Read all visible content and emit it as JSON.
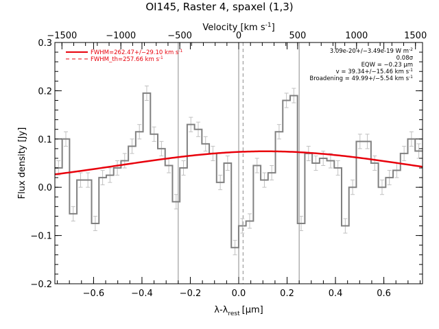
{
  "chart_data": {
    "type": "line",
    "title": "OI145, Raster 4, spaxel (1,3)",
    "xlabel": "λ-λ",
    "xlabel_sub": "rest",
    "xlabel_unit": "[μm]",
    "ylabel": "Flux density [Jy]",
    "top_axis_label": "Velocity [km s",
    "top_axis_label_exp": "-1",
    "top_axis_label_end": "]",
    "xlim": [
      -0.76,
      0.76
    ],
    "ylim": [
      -0.2,
      0.3
    ],
    "top_xlim": [
      -1560,
      1560
    ],
    "x_ticks": [
      -0.6,
      -0.4,
      -0.2,
      0.0,
      0.2,
      0.4,
      0.6
    ],
    "x_tick_labels": [
      "−0.6",
      "−0.4",
      "−0.2",
      "0.0",
      "0.2",
      "0.4",
      "0.6"
    ],
    "y_ticks": [
      -0.2,
      -0.1,
      0.0,
      0.1,
      0.2,
      0.3
    ],
    "y_tick_labels": [
      "−0.2",
      "−0.1",
      "0.0",
      "0.1",
      "0.2",
      "0.3"
    ],
    "top_ticks": [
      -1500,
      -1000,
      -500,
      0,
      500,
      1000,
      1500
    ],
    "top_tick_labels": [
      "−1500",
      "−1000",
      "−500",
      "0",
      "500",
      "1000",
      "1500"
    ],
    "vertical_lines_solid": [
      -0.25,
      0.0,
      0.25
    ],
    "vertical_lines_dashed": [
      0.018
    ],
    "series": [
      {
        "name": "data",
        "style": "histogram",
        "color": "#808080",
        "bin_width": 0.0304,
        "x": [
          -0.745,
          -0.7146,
          -0.6842,
          -0.6538,
          -0.6234,
          -0.593,
          -0.5626,
          -0.5322,
          -0.5018,
          -0.4714,
          -0.441,
          -0.4106,
          -0.3802,
          -0.3498,
          -0.3194,
          -0.289,
          -0.2586,
          -0.2282,
          -0.1978,
          -0.1674,
          -0.137,
          -0.1066,
          -0.0762,
          -0.0458,
          -0.0154,
          0.015,
          0.0454,
          0.0758,
          0.1062,
          0.1366,
          0.167,
          0.1974,
          0.2278,
          0.2582,
          0.2886,
          0.319,
          0.3494,
          0.3798,
          0.4102,
          0.4406,
          0.471,
          0.5014,
          0.5318,
          0.5622,
          0.5926,
          0.623,
          0.6534,
          0.6838,
          0.7142,
          0.7446
        ],
        "y": [
          0.04,
          0.1,
          -0.055,
          0.015,
          0.015,
          -0.075,
          0.02,
          0.025,
          0.04,
          0.055,
          0.085,
          0.115,
          0.195,
          0.11,
          0.08,
          0.045,
          -0.03,
          0.04,
          0.13,
          0.12,
          0.09,
          0.07,
          0.01,
          0.05,
          -0.125,
          -0.08,
          -0.07,
          0.045,
          0.015,
          0.03,
          0.115,
          0.18,
          0.19,
          -0.075,
          0.07,
          0.05,
          0.06,
          0.055,
          0.04,
          -0.08,
          0.0,
          0.095,
          0.095,
          0.05,
          0.0,
          0.02,
          0.035,
          0.07,
          0.1,
          0.075
        ],
        "err": [
          0.015,
          0.015,
          0.015,
          0.015,
          0.015,
          0.015,
          0.015,
          0.015,
          0.015,
          0.015,
          0.015,
          0.015,
          0.015,
          0.015,
          0.015,
          0.015,
          0.015,
          0.015,
          0.015,
          0.015,
          0.015,
          0.015,
          0.015,
          0.015,
          0.015,
          0.015,
          0.015,
          0.015,
          0.015,
          0.015,
          0.015,
          0.015,
          0.015,
          0.015,
          0.015,
          0.015,
          0.015,
          0.015,
          0.015,
          0.015,
          0.015,
          0.015,
          0.015,
          0.015,
          0.015,
          0.015,
          0.015,
          0.015,
          0.015,
          0.015
        ]
      },
      {
        "name": "FWHM=262.47+/−29.10 km s",
        "style": "gaussian",
        "color": "#e8000b",
        "center": 0.113,
        "amplitude": 0.0745,
        "sigma": 0.61
      }
    ],
    "legend": [
      {
        "label": "FWHM=262.47+/−29.10 km s",
        "exp": "-1",
        "line": "solid",
        "color": "#e8000b"
      },
      {
        "label": "FWHM_th=257.66 km s",
        "exp": "-1",
        "line": "dashed",
        "color": "#e8000b"
      }
    ],
    "legend_placement": "top-left",
    "annotations": [
      {
        "text": "3.09e-20+/−3.49e-19 W m",
        "exp": "-2"
      },
      {
        "text": "0.08σ",
        "exp": ""
      },
      {
        "text": "EQW = −0.23 μm",
        "exp": ""
      },
      {
        "text": "v = 39.34+/−15.46 km s",
        "exp": "-1"
      },
      {
        "text": "Broadening = 49.99+/−5.54 km s",
        "exp": "-1"
      }
    ],
    "annotation_placement": "top-right",
    "grid": false
  }
}
